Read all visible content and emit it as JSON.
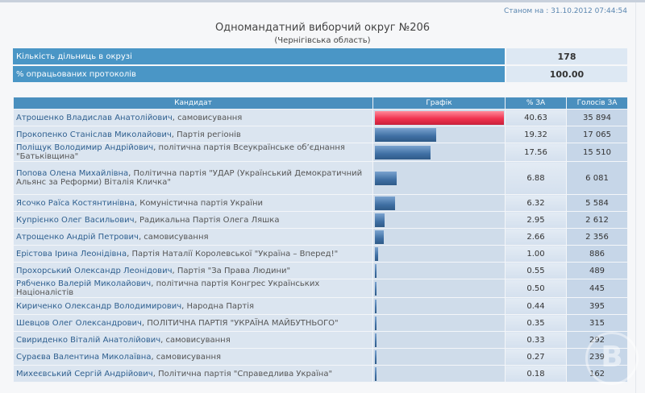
{
  "status": "Станом на : 31.10.2012 07:44:54",
  "title": "Одномандатний виборчий округ №206",
  "subtitle": "(Чернігівська область)",
  "info": [
    {
      "label": "Кількість дільниць в окрузі",
      "value": "178"
    },
    {
      "label": "% опрацьованих протоколів",
      "value": "100.00"
    }
  ],
  "columns": {
    "candidate": "Кандидат",
    "graph": "Графік",
    "pct": "% ЗА",
    "votes": "Голосів ЗА"
  },
  "colors": {
    "winner_bar": "#f0324f",
    "bar": "#3f6fa3",
    "header": "#4a8fbe"
  },
  "candidates": [
    {
      "name": "Атрошенко Владислав Анатолійович",
      "party": ", самовисування",
      "pct": "40.63",
      "votes": "35 894"
    },
    {
      "name": "Прокопенко Станіслав Миколайович",
      "party": ", Партія регіонів",
      "pct": "19.32",
      "votes": "17 065"
    },
    {
      "name": "Поліщук Володимир Андрійович",
      "party": ", політична партія Всеукраїнське об’єднання \"Батьківщина\"",
      "pct": "17.56",
      "votes": "15 510"
    },
    {
      "name": "Попова Олена Михайлівна",
      "party": ", Політична партія \"УДАР (Український Демократичний Альянс за Реформи) Віталія Кличка\"",
      "pct": "6.88",
      "votes": "6 081"
    },
    {
      "name": "Ясочко Раїса Костянтинівна",
      "party": ", Комуністична партія України",
      "pct": "6.32",
      "votes": "5 584"
    },
    {
      "name": "Купрієнко Олег Васильович",
      "party": ", Радикальна Партія Олега Ляшка",
      "pct": "2.95",
      "votes": "2 612"
    },
    {
      "name": "Атрощенко Андрій Петрович",
      "party": ", самовисування",
      "pct": "2.66",
      "votes": "2 356"
    },
    {
      "name": "Ерістова Ірина Леонідівна",
      "party": ", Партія Наталії Королевської \"Україна – Вперед!\"",
      "pct": "1.00",
      "votes": "886"
    },
    {
      "name": "Прохорський Олександр Леонідович",
      "party": ", Партія \"За Права Людини\"",
      "pct": "0.55",
      "votes": "489"
    },
    {
      "name": "Рябченко Валерій Миколайович",
      "party": ", політична партія Конгрес Українських Націоналістів",
      "pct": "0.50",
      "votes": "445"
    },
    {
      "name": "Кириченко Олександр Володимирович",
      "party": ", Народна Партія",
      "pct": "0.44",
      "votes": "395"
    },
    {
      "name": "Шевцов Олег Олександрович",
      "party": ", ПОЛІТИЧНА ПАРТІЯ \"УКРАЇНА МАЙБУТНЬОГО\"",
      "pct": "0.35",
      "votes": "315"
    },
    {
      "name": "Свириденко Віталій Анатолійович",
      "party": ", самовисування",
      "pct": "0.33",
      "votes": "292"
    },
    {
      "name": "Сураєва Валентина Миколаївна",
      "party": ", самовисування",
      "pct": "0.27",
      "votes": "239"
    },
    {
      "name": "Михеєвський Сергій Андрійович",
      "party": ", Політична партія \"Справедлива Україна\"",
      "pct": "0.18",
      "votes": "162"
    }
  ]
}
